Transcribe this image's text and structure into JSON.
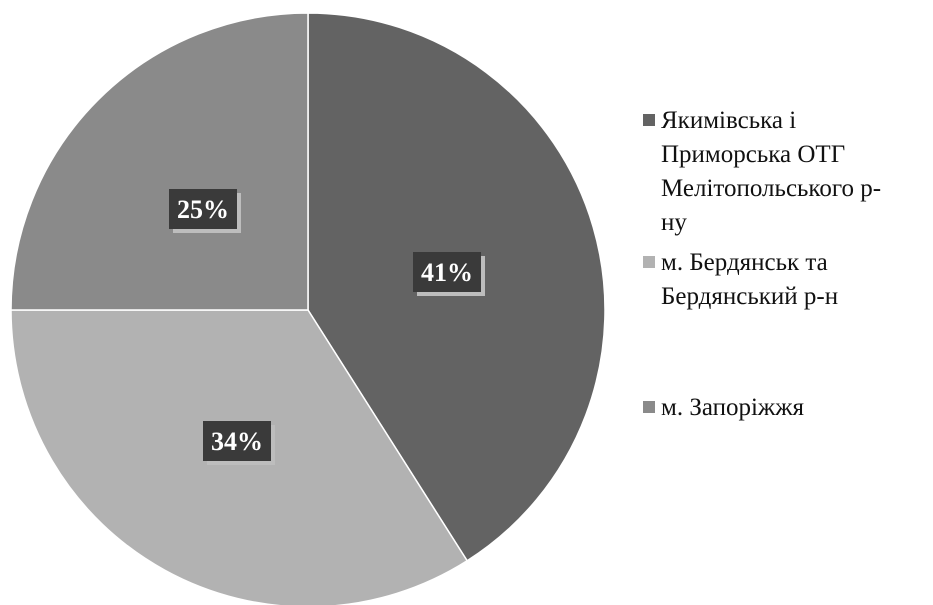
{
  "chart_data": {
    "type": "pie",
    "start_angle_deg": 0,
    "direction": "clockwise",
    "label_box_color": "#3a3a3a",
    "slices": [
      {
        "label": "Якимівська і Приморська ОТГ Мелітопольського р-ну",
        "legend_lines": [
          "Якимівська і",
          "Приморська ОТГ",
          "Мелітопольського р-",
          "ну"
        ],
        "value": 41,
        "data_label": "41%",
        "color": "#636363"
      },
      {
        "label": "м. Бердянськ та Бердянський р-н",
        "legend_lines": [
          "м. Бердянськ та",
          "Бердянський р-н"
        ],
        "value": 34,
        "data_label": "34%",
        "color": "#b2b2b2"
      },
      {
        "label": "м. Запоріжжя",
        "legend_lines": [
          "м. Запоріжжя"
        ],
        "value": 25,
        "data_label": "25%",
        "color": "#8a8a8a"
      }
    ],
    "legend_position": "right"
  }
}
